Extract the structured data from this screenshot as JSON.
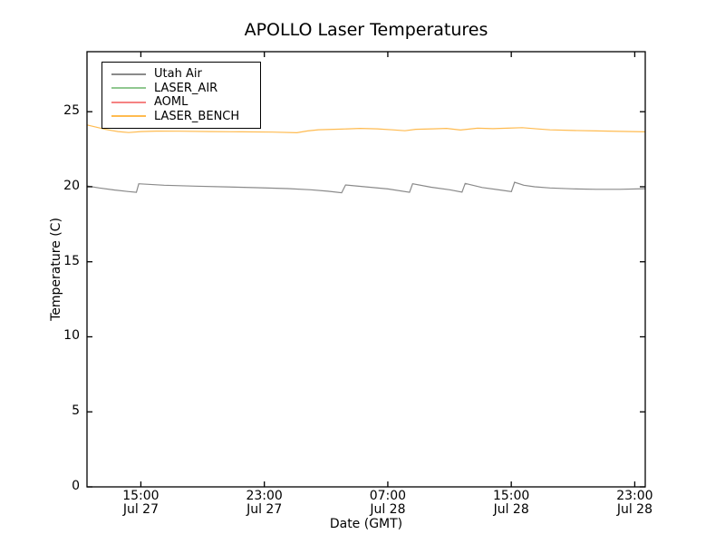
{
  "figure": {
    "background": "#ffffff",
    "frame_color": "#000000",
    "text_color": "#000000"
  },
  "chart_data": {
    "type": "line",
    "title": "APOLLO Laser Temperatures",
    "xlabel": "Date (GMT)",
    "ylabel": "Temperature (C)",
    "ylim": [
      0,
      29
    ],
    "xlim": [
      0,
      36.17
    ],
    "x_unit": "hours from left edge of plot (~11:30 Jul 27 GMT)",
    "grid": false,
    "legend_position": "upper left",
    "yticks": [
      {
        "pos": 0,
        "label": "0"
      },
      {
        "pos": 5,
        "label": "5"
      },
      {
        "pos": 10,
        "label": "10"
      },
      {
        "pos": 15,
        "label": "15"
      },
      {
        "pos": 20,
        "label": "20"
      },
      {
        "pos": 25,
        "label": "25"
      }
    ],
    "xticks": [
      {
        "pos": 3.49,
        "time": "15:00",
        "date": "Jul 27"
      },
      {
        "pos": 11.49,
        "time": "23:00",
        "date": "Jul 27"
      },
      {
        "pos": 19.49,
        "time": "07:00",
        "date": "Jul 28"
      },
      {
        "pos": 27.49,
        "time": "15:00",
        "date": "Jul 28"
      },
      {
        "pos": 35.49,
        "time": "23:00",
        "date": "Jul 28"
      }
    ],
    "series": [
      {
        "name": "Utah Air",
        "color": "#8a8a8a",
        "points": [
          [
            0,
            20.05
          ],
          [
            0.8,
            19.92
          ],
          [
            1.8,
            19.78
          ],
          [
            2.7,
            19.68
          ],
          [
            3.2,
            19.63
          ],
          [
            3.35,
            20.2
          ],
          [
            5,
            20.1
          ],
          [
            7,
            20.04
          ],
          [
            9,
            19.99
          ],
          [
            11,
            19.94
          ],
          [
            13,
            19.88
          ],
          [
            14.5,
            19.8
          ],
          [
            15.6,
            19.7
          ],
          [
            16.5,
            19.6
          ],
          [
            16.75,
            20.12
          ],
          [
            18,
            20.0
          ],
          [
            19.5,
            19.85
          ],
          [
            20.9,
            19.63
          ],
          [
            21.1,
            20.2
          ],
          [
            22.3,
            19.97
          ],
          [
            23.5,
            19.8
          ],
          [
            24.3,
            19.64
          ],
          [
            24.5,
            20.22
          ],
          [
            25.6,
            19.95
          ],
          [
            26.8,
            19.78
          ],
          [
            27.5,
            19.68
          ],
          [
            27.7,
            20.3
          ],
          [
            28.3,
            20.1
          ],
          [
            29,
            20.0
          ],
          [
            30,
            19.92
          ],
          [
            31.5,
            19.86
          ],
          [
            33,
            19.83
          ],
          [
            34.5,
            19.83
          ],
          [
            36.17,
            19.87
          ]
        ]
      },
      {
        "name": "LASER_AIR",
        "color": "#90c890",
        "points": []
      },
      {
        "name": "AOML",
        "color": "#f58282",
        "points": []
      },
      {
        "name": "LASER_BENCH",
        "color": "#ffbb50",
        "points": [
          [
            0,
            24.12
          ],
          [
            0.5,
            24.0
          ],
          [
            1.2,
            23.82
          ],
          [
            2.0,
            23.68
          ],
          [
            2.7,
            23.61
          ],
          [
            3.5,
            23.68
          ],
          [
            4.5,
            23.71
          ],
          [
            6,
            23.7
          ],
          [
            8,
            23.68
          ],
          [
            10,
            23.66
          ],
          [
            12,
            23.64
          ],
          [
            13.6,
            23.6
          ],
          [
            14.3,
            23.72
          ],
          [
            15,
            23.8
          ],
          [
            16.5,
            23.84
          ],
          [
            17.7,
            23.89
          ],
          [
            18.8,
            23.86
          ],
          [
            19.8,
            23.79
          ],
          [
            20.6,
            23.73
          ],
          [
            21.3,
            23.83
          ],
          [
            22.4,
            23.86
          ],
          [
            23.3,
            23.89
          ],
          [
            24.2,
            23.78
          ],
          [
            25.3,
            23.9
          ],
          [
            26.3,
            23.87
          ],
          [
            27.2,
            23.9
          ],
          [
            28.2,
            23.94
          ],
          [
            29.2,
            23.85
          ],
          [
            30,
            23.79
          ],
          [
            31.5,
            23.75
          ],
          [
            33,
            23.72
          ],
          [
            34.5,
            23.69
          ],
          [
            36.17,
            23.66
          ]
        ]
      }
    ]
  }
}
